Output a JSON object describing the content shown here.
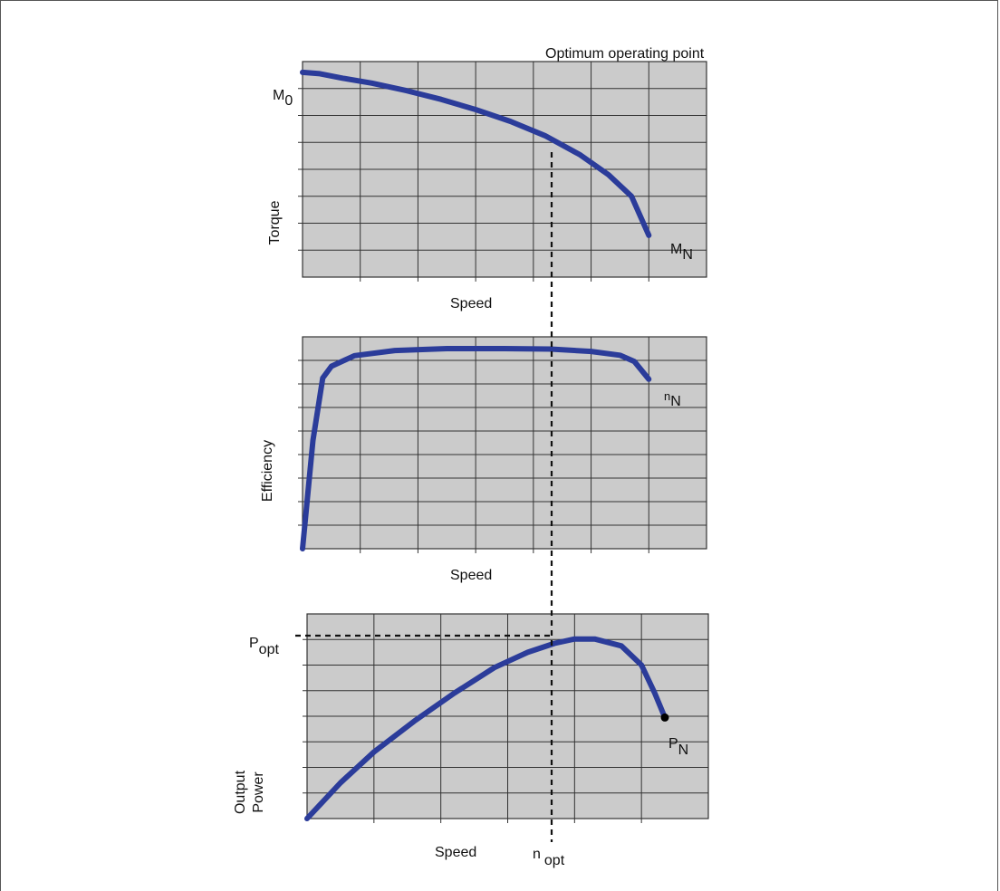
{
  "colors": {
    "curve": "#2b3c9a",
    "panel": "#cbcbcb",
    "grid": "#333333",
    "text": "#111111"
  },
  "annotation": {
    "text": "Optimum operating point"
  },
  "chart_data": [
    {
      "type": "line",
      "id": "torque",
      "xlabel": "Speed",
      "ylabel": "Torque",
      "xlim": [
        0,
        7
      ],
      "ylim": [
        0,
        8
      ],
      "grid": true,
      "x": [
        0,
        0.3,
        0.7,
        1.2,
        1.8,
        2.4,
        3.0,
        3.6,
        4.2,
        4.8,
        5.3,
        5.7,
        6.0
      ],
      "values": [
        7.6,
        7.55,
        7.38,
        7.2,
        6.92,
        6.6,
        6.22,
        5.78,
        5.25,
        4.55,
        3.8,
        3.0,
        1.55
      ],
      "labels": [
        {
          "text": "M",
          "sub": "0",
          "role": "start"
        },
        {
          "text": "M",
          "sub": "N",
          "role": "end"
        }
      ]
    },
    {
      "type": "line",
      "id": "efficiency",
      "xlabel": "Speed",
      "ylabel": "Efficiency",
      "xlim": [
        0,
        7
      ],
      "ylim": [
        0,
        9
      ],
      "grid": true,
      "x": [
        0,
        0.18,
        0.35,
        0.5,
        0.9,
        1.6,
        2.5,
        3.5,
        4.3,
        5.0,
        5.5,
        5.75,
        6.0
      ],
      "values": [
        0,
        4.6,
        7.25,
        7.75,
        8.2,
        8.42,
        8.5,
        8.5,
        8.48,
        8.38,
        8.22,
        7.95,
        7.2
      ],
      "labels": [
        {
          "text": "n",
          "sub": "N",
          "role": "end"
        }
      ]
    },
    {
      "type": "line",
      "id": "output-power",
      "xlabel": "Speed",
      "ylabel": "Output Power",
      "xlim": [
        0,
        6
      ],
      "ylim": [
        0,
        8
      ],
      "grid": true,
      "x": [
        0,
        0.5,
        1.0,
        1.6,
        2.2,
        2.8,
        3.3,
        3.7,
        4.0,
        4.3,
        4.7,
        5.0,
        5.2,
        5.35
      ],
      "values": [
        0,
        1.4,
        2.6,
        3.8,
        4.9,
        5.9,
        6.5,
        6.85,
        7.02,
        7.02,
        6.75,
        6.0,
        4.9,
        3.95
      ],
      "markers": [
        {
          "x": 5.35,
          "y": 3.95
        }
      ],
      "labels": [
        {
          "text": "P",
          "sub": "opt",
          "role": "ref-y"
        },
        {
          "text": "P",
          "sub": "N",
          "role": "end"
        },
        {
          "text": "n",
          "sub": "opt",
          "role": "ref-x"
        }
      ]
    }
  ]
}
